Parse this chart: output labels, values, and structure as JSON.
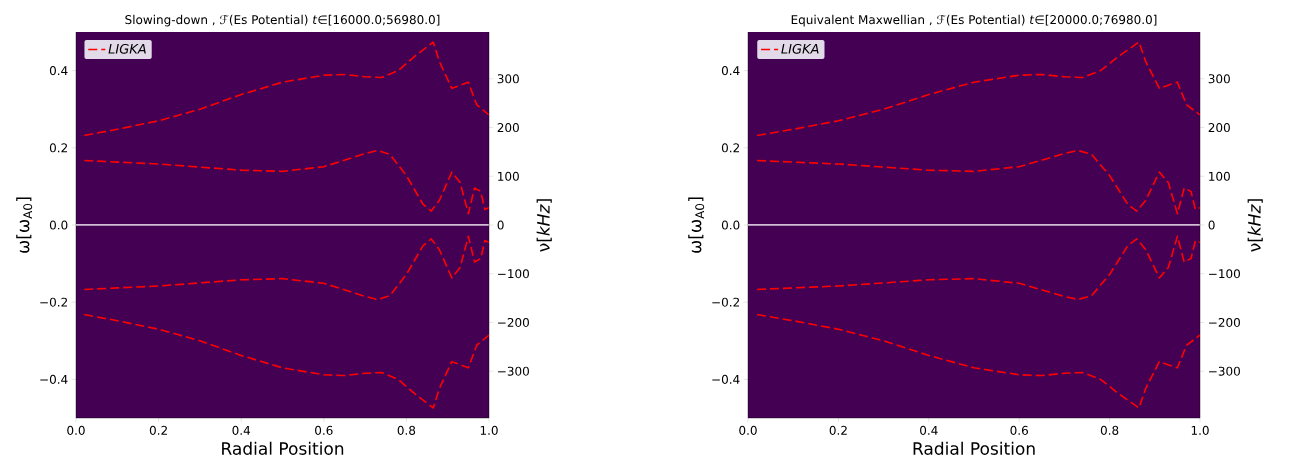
{
  "chart_data": [
    {
      "type": "line",
      "title": "Slowing-down , ℱ(Es Potential) *t*∈[16000.0;56980.0]",
      "xlabel": "Radial Position",
      "ylabel": "ω[ω$_{A0}$]",
      "y2label": "ν[*kHz*]",
      "xlim": [
        0,
        1
      ],
      "ylim": [
        -0.5,
        0.5
      ],
      "y2lim": [
        -396,
        396
      ],
      "xticks": [
        {
          "value": 0,
          "label": "0.0"
        },
        {
          "value": 0.2,
          "label": "0.2"
        },
        {
          "value": 0.4,
          "label": "0.4"
        },
        {
          "value": 0.6,
          "label": "0.6"
        },
        {
          "value": 0.8,
          "label": "0.8"
        },
        {
          "value": 1,
          "label": "1.0"
        }
      ],
      "yticks": [
        {
          "value": -0.4,
          "label": "−0.4"
        },
        {
          "value": -0.2,
          "label": "−0.2"
        },
        {
          "value": 0,
          "label": "0.0"
        },
        {
          "value": 0.2,
          "label": "0.2"
        },
        {
          "value": 0.4,
          "label": "0.4"
        }
      ],
      "y2ticks": [
        {
          "value": -300,
          "label": "−300"
        },
        {
          "value": -200,
          "label": "−200"
        },
        {
          "value": -100,
          "label": "−100"
        },
        0,
        100,
        200,
        300
      ],
      "legend": "top left",
      "line_style": "dashed",
      "ref_lines": [
        {
          "axis": "y",
          "value": 0,
          "color": "#ffffff"
        }
      ],
      "series": [
        {
          "name": "LIGKA",
          "color": "#ff0000",
          "x": [
            0.02,
            0.1,
            0.2,
            0.3,
            0.4,
            0.5,
            0.6,
            0.65,
            0.7,
            0.74,
            0.78,
            0.82,
            0.86,
            0.865,
            0.88,
            0.91,
            0.95,
            0.97,
            1.0
          ],
          "values": [
            0.232,
            0.248,
            0.27,
            0.3,
            0.338,
            0.37,
            0.388,
            0.39,
            0.384,
            0.382,
            0.4,
            0.437,
            0.47,
            0.474,
            0.423,
            0.354,
            0.37,
            0.312,
            0.285
          ]
        },
        {
          "color": "#ff0000",
          "x": [
            0.02,
            0.1,
            0.2,
            0.3,
            0.4,
            0.5,
            0.6,
            0.7,
            0.73,
            0.76,
            0.8,
            0.84,
            0.86,
            0.88,
            0.91,
            0.93,
            0.95,
            0.965,
            0.98,
            0.99,
            1.0
          ],
          "values": [
            0.167,
            0.163,
            0.158,
            0.15,
            0.142,
            0.139,
            0.151,
            0.185,
            0.193,
            0.183,
            0.128,
            0.054,
            0.036,
            0.064,
            0.137,
            0.11,
            0.029,
            0.096,
            0.087,
            0.04,
            0.045
          ]
        },
        {
          "color": "#ff0000",
          "x": [
            0.02,
            0.1,
            0.2,
            0.3,
            0.4,
            0.5,
            0.6,
            0.7,
            0.73,
            0.76,
            0.8,
            0.84,
            0.86,
            0.88,
            0.91,
            0.93,
            0.95,
            0.965,
            0.98,
            0.99,
            1.0
          ],
          "values": [
            -0.167,
            -0.163,
            -0.158,
            -0.15,
            -0.142,
            -0.139,
            -0.151,
            -0.185,
            -0.193,
            -0.183,
            -0.128,
            -0.054,
            -0.036,
            -0.064,
            -0.137,
            -0.11,
            -0.029,
            -0.096,
            -0.087,
            -0.04,
            -0.045
          ]
        },
        {
          "color": "#ff0000",
          "x": [
            0.02,
            0.1,
            0.2,
            0.3,
            0.4,
            0.5,
            0.6,
            0.65,
            0.7,
            0.74,
            0.78,
            0.82,
            0.86,
            0.865,
            0.88,
            0.91,
            0.95,
            0.97,
            1.0
          ],
          "values": [
            -0.232,
            -0.248,
            -0.27,
            -0.3,
            -0.338,
            -0.37,
            -0.388,
            -0.39,
            -0.384,
            -0.382,
            -0.4,
            -0.437,
            -0.47,
            -0.474,
            -0.423,
            -0.354,
            -0.37,
            -0.312,
            -0.285
          ]
        }
      ]
    },
    {
      "type": "line",
      "title": "Equivalent Maxwellian , ℱ(Es Potential) *t*∈[20000.0;76980.0]",
      "xlabel": "Radial Position",
      "ylabel": "ω[ω$_{A0}$]",
      "y2label": "ν[*kHz*]",
      "xlim": [
        0,
        1
      ],
      "ylim": [
        -0.5,
        0.5
      ],
      "y2lim": [
        -396,
        396
      ],
      "xticks": [
        {
          "value": 0,
          "label": "0.0"
        },
        {
          "value": 0.2,
          "label": "0.2"
        },
        {
          "value": 0.4,
          "label": "0.4"
        },
        {
          "value": 0.6,
          "label": "0.6"
        },
        {
          "value": 0.8,
          "label": "0.8"
        },
        {
          "value": 1,
          "label": "1.0"
        }
      ],
      "yticks": [
        {
          "value": -0.4,
          "label": "−0.4"
        },
        {
          "value": -0.2,
          "label": "−0.2"
        },
        {
          "value": 0,
          "label": "0.0"
        },
        {
          "value": 0.2,
          "label": "0.2"
        },
        {
          "value": 0.4,
          "label": "0.4"
        }
      ],
      "y2ticks": [
        {
          "value": -300,
          "label": "−300"
        },
        {
          "value": -200,
          "label": "−200"
        },
        {
          "value": -100,
          "label": "−100"
        },
        0,
        100,
        200,
        300
      ],
      "legend": "top left",
      "line_style": "dashed",
      "ref_lines": [
        {
          "axis": "y",
          "value": 0,
          "color": "#ffffff"
        }
      ],
      "series": [
        {
          "name": "LIGKA",
          "color": "#ff0000",
          "x": [
            0.02,
            0.1,
            0.2,
            0.3,
            0.4,
            0.5,
            0.6,
            0.65,
            0.7,
            0.74,
            0.78,
            0.82,
            0.86,
            0.865,
            0.88,
            0.91,
            0.95,
            0.97,
            1.0
          ],
          "values": [
            0.232,
            0.248,
            0.27,
            0.3,
            0.338,
            0.37,
            0.388,
            0.39,
            0.384,
            0.382,
            0.4,
            0.437,
            0.47,
            0.474,
            0.423,
            0.354,
            0.37,
            0.312,
            0.285
          ]
        },
        {
          "color": "#ff0000",
          "x": [
            0.02,
            0.1,
            0.2,
            0.3,
            0.4,
            0.5,
            0.6,
            0.7,
            0.73,
            0.76,
            0.8,
            0.84,
            0.86,
            0.88,
            0.91,
            0.93,
            0.95,
            0.965,
            0.98,
            0.99,
            1.0
          ],
          "values": [
            0.167,
            0.163,
            0.158,
            0.15,
            0.142,
            0.139,
            0.151,
            0.185,
            0.193,
            0.183,
            0.128,
            0.054,
            0.036,
            0.064,
            0.137,
            0.11,
            0.029,
            0.096,
            0.087,
            0.04,
            0.045
          ]
        },
        {
          "color": "#ff0000",
          "x": [
            0.02,
            0.1,
            0.2,
            0.3,
            0.4,
            0.5,
            0.6,
            0.7,
            0.73,
            0.76,
            0.8,
            0.84,
            0.86,
            0.88,
            0.91,
            0.93,
            0.95,
            0.965,
            0.98,
            0.99,
            1.0
          ],
          "values": [
            -0.167,
            -0.163,
            -0.158,
            -0.15,
            -0.142,
            -0.139,
            -0.151,
            -0.185,
            -0.193,
            -0.183,
            -0.128,
            -0.054,
            -0.036,
            -0.064,
            -0.137,
            -0.11,
            -0.029,
            -0.096,
            -0.087,
            -0.04,
            -0.045
          ]
        },
        {
          "color": "#ff0000",
          "x": [
            0.02,
            0.1,
            0.2,
            0.3,
            0.4,
            0.5,
            0.6,
            0.65,
            0.7,
            0.74,
            0.78,
            0.82,
            0.86,
            0.865,
            0.88,
            0.91,
            0.95,
            0.97,
            1.0
          ],
          "values": [
            -0.232,
            -0.248,
            -0.27,
            -0.3,
            -0.338,
            -0.37,
            -0.388,
            -0.39,
            -0.384,
            -0.382,
            -0.4,
            -0.437,
            -0.47,
            -0.474,
            -0.423,
            -0.354,
            -0.37,
            -0.312,
            -0.285
          ]
        }
      ]
    }
  ]
}
